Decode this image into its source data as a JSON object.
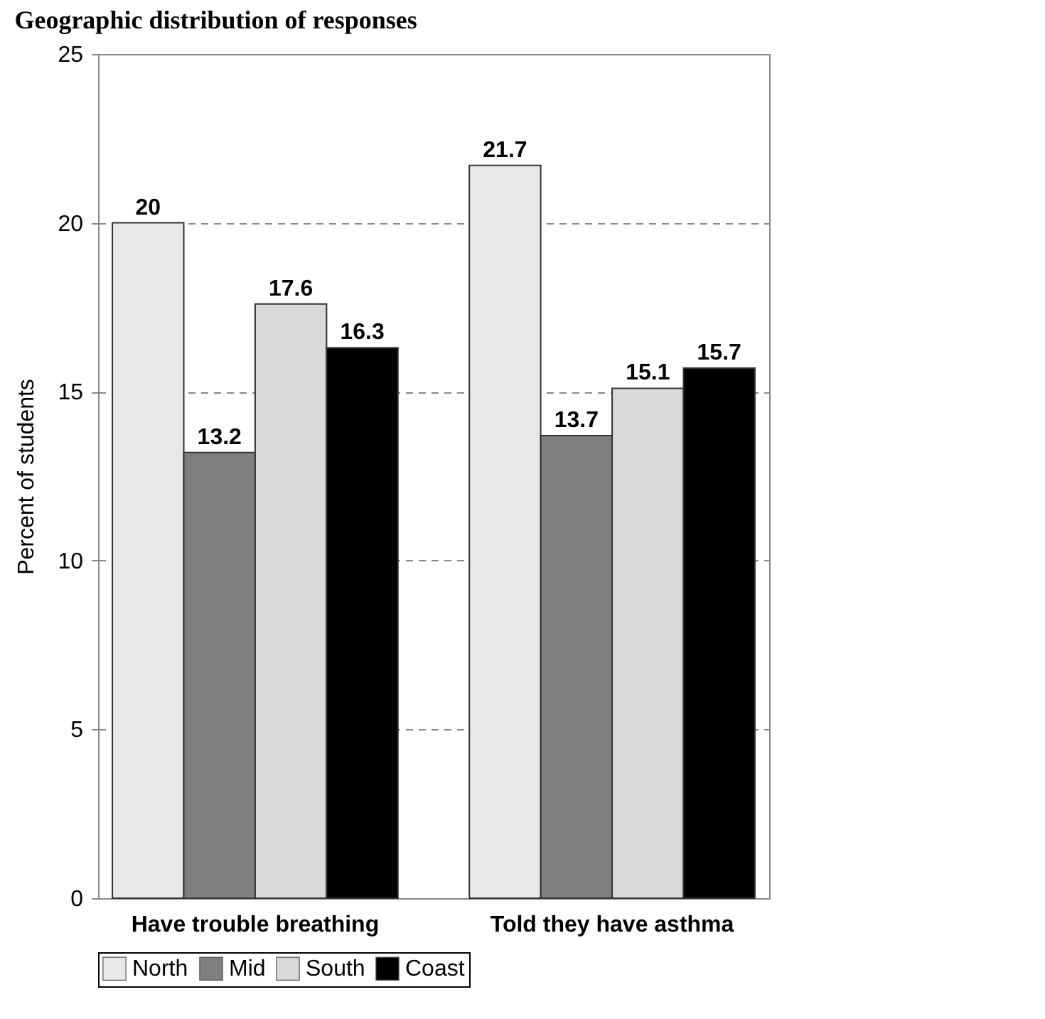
{
  "chart_data": {
    "type": "bar",
    "title": "Geographic distribution of responses",
    "ylabel": "Percent of students",
    "categories": [
      "Have trouble breathing",
      "Told they have asthma"
    ],
    "series": [
      {
        "name": "North",
        "color": "#e8e8e8",
        "values": [
          20,
          21.7
        ]
      },
      {
        "name": "Mid",
        "color": "#7f7f7f",
        "values": [
          13.2,
          13.7
        ]
      },
      {
        "name": "South",
        "color": "#d9d9d9",
        "values": [
          17.6,
          15.1
        ]
      },
      {
        "name": "Coast",
        "color": "#000000",
        "values": [
          16.3,
          15.7
        ]
      }
    ],
    "ylim": [
      0,
      25
    ],
    "yticks": [
      0,
      5,
      10,
      15,
      20,
      25
    ],
    "grid": "y",
    "legend": "bottom",
    "data_labels": true
  }
}
